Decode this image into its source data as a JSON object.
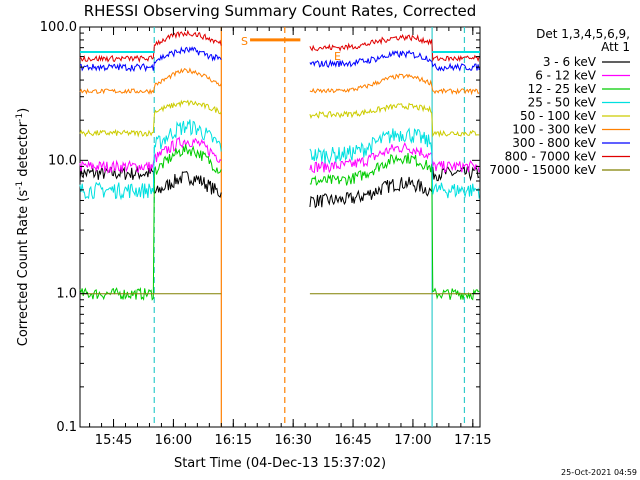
{
  "chart_data": {
    "type": "line",
    "title": "RHESSI Observing Summary Count Rates, Corrected",
    "xlabel": "Start Time (04-Dec-13 15:37:02)",
    "ylabel_main": "Corrected Count Rate (s",
    "ylabel_sup1": "-1",
    "ylabel_mid": " detector",
    "ylabel_sup2": "-1",
    "ylabel_end": ")",
    "y_scale": "log",
    "ylim": [
      0.1,
      100.0
    ],
    "xlim_minutes": [
      15.61,
      17.28
    ],
    "x_ticks": [
      {
        "t": 15.75,
        "label": "15:45"
      },
      {
        "t": 16.0,
        "label": "16:00"
      },
      {
        "t": 16.25,
        "label": "16:15"
      },
      {
        "t": 16.5,
        "label": "16:30"
      },
      {
        "t": 16.75,
        "label": "16:45"
      },
      {
        "t": 17.0,
        "label": "17:00"
      },
      {
        "t": 17.25,
        "label": "17:15"
      }
    ],
    "y_ticks": [
      {
        "v": 100.0,
        "label": "100.0"
      },
      {
        "v": 10.0,
        "label": "10.0"
      },
      {
        "v": 1.0,
        "label": "1.0"
      },
      {
        "v": 0.1,
        "label": "0.1"
      }
    ],
    "legend_header_1": "Det 1,3,4,5,6,9,",
    "legend_header_2": "Att 1",
    "markers": {
      "saa_start": "S",
      "saa_end": "E"
    },
    "timestamp": "25-Oct-2021 04:59",
    "day_segments": [
      [
        15.61,
        16.2
      ],
      [
        16.57,
        17.28
      ]
    ],
    "saa_band": {
      "x": [
        16.32,
        16.53
      ],
      "y": 80.0,
      "color": "#ff8000"
    },
    "vlines": [
      {
        "t": 16.2,
        "style": "solid",
        "color": "#ff8000"
      },
      {
        "t": 16.465,
        "style": "dashed",
        "color": "#ff8000"
      },
      {
        "t": 15.92,
        "style": "dashed",
        "color": "#33cccc"
      },
      {
        "t": 17.08,
        "style": "solid",
        "color": "#33cccc"
      },
      {
        "t": 17.215,
        "style": "dashed",
        "color": "#33cccc"
      }
    ],
    "series": [
      {
        "name": "3 - 6 keV",
        "color": "#000000",
        "base": 5.0,
        "peak": 7.5,
        "pre": 8.0,
        "noise": 0.12
      },
      {
        "name": "6 - 12 keV",
        "color": "#ff00ff",
        "base": 9.0,
        "peak": 14.0,
        "pre": 9.0,
        "noise": 0.1
      },
      {
        "name": "12 - 25 keV",
        "color": "#00cc00",
        "base": 7.0,
        "peak": 12.0,
        "pre": 1.0,
        "noise": 0.1
      },
      {
        "name": "25 - 50 keV",
        "color": "#00e0e0",
        "base": 11.0,
        "peak": 18.0,
        "pre": 6.0,
        "noise": 0.14
      },
      {
        "name": "50 - 100 keV",
        "color": "#cccc00",
        "base": 22.0,
        "peak": 27.0,
        "pre": 16.0,
        "noise": 0.05
      },
      {
        "name": "100 - 300 keV",
        "color": "#ff8000",
        "base": 33.0,
        "peak": 47.0,
        "pre": 33.0,
        "noise": 0.04
      },
      {
        "name": "300 - 800 keV",
        "color": "#0000ff",
        "base": 53.0,
        "peak": 67.0,
        "pre": 50.0,
        "noise": 0.06
      },
      {
        "name": "800 - 7000 keV",
        "color": "#e00000",
        "base": 70.0,
        "peak": 90.0,
        "pre": 58.0,
        "noise": 0.05
      },
      {
        "name": "7000 - 15000 keV",
        "color": "#808000",
        "base": 1.0,
        "peak": 1.0,
        "pre": 1.0,
        "noise": 0.0
      }
    ]
  }
}
